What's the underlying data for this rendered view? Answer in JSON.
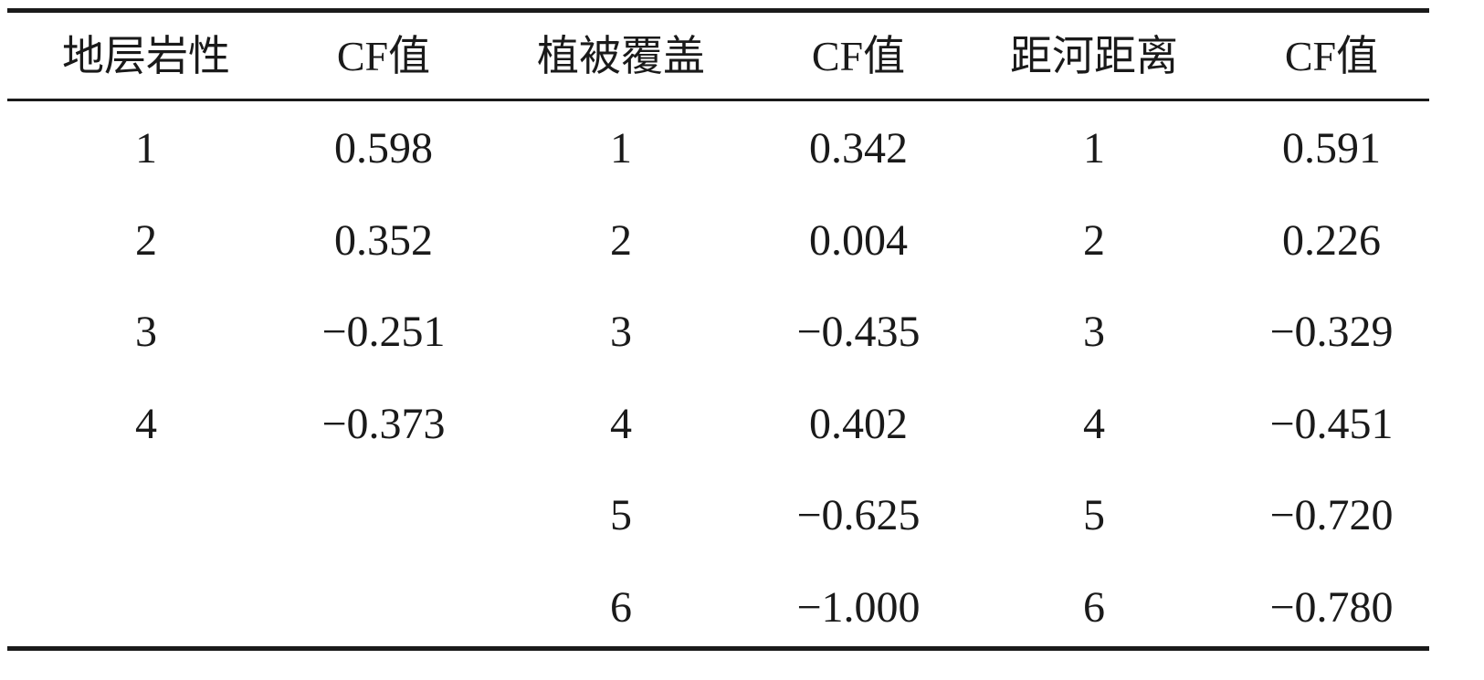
{
  "table": {
    "header": [
      "地层岩性",
      "CF值",
      "植被覆盖",
      "CF值",
      "距河距离",
      "CF值"
    ],
    "rows": [
      [
        "1",
        "0.598",
        "1",
        "0.342",
        "1",
        "0.591"
      ],
      [
        "2",
        "0.352",
        "2",
        "0.004",
        "2",
        "0.226"
      ],
      [
        "3",
        "−0.251",
        "3",
        "−0.435",
        "3",
        "−0.329"
      ],
      [
        "4",
        "−0.373",
        "4",
        "0.402",
        "4",
        "−0.451"
      ],
      [
        null,
        null,
        "5",
        "−0.625",
        "5",
        "−0.720"
      ],
      [
        null,
        null,
        "6",
        "−1.000",
        "6",
        "−0.780"
      ]
    ]
  }
}
